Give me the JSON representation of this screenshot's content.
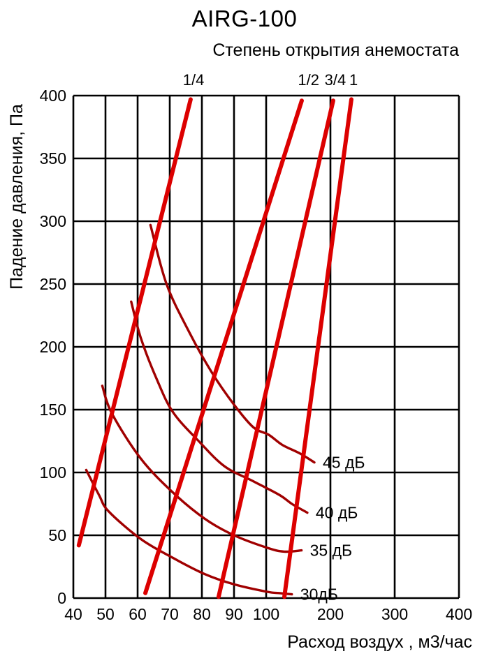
{
  "chart_data": {
    "type": "line",
    "title": "AIRG-100",
    "subtitle": "Степень открытия анемостата",
    "xlabel": "Расход воздух , м3/час",
    "ylabel": "Падение давления, Па",
    "x_axis": {
      "ticks": [
        40,
        50,
        60,
        70,
        80,
        90,
        100,
        200,
        300,
        400
      ],
      "scale": "segmented: equal spacing per tick, 40-100 step 10, 100-400 step 100",
      "range": [
        40,
        400
      ]
    },
    "y_axis": {
      "ticks": [
        0,
        50,
        100,
        150,
        200,
        250,
        300,
        350,
        400
      ],
      "range": [
        0,
        400
      ]
    },
    "grid": "on",
    "legend_position": "labels inline at curve ends",
    "colors": {
      "opening_line": "#dc0000",
      "noise_line": "#a00000",
      "grid": "#000000",
      "text": "#000000"
    },
    "opening_series": [
      {
        "label": "1/4",
        "label_at_flow": 77.4,
        "points": [
          [
            41.7,
            42
          ],
          [
            76.5,
            397
          ]
        ]
      },
      {
        "label": "1/2",
        "label_at_flow": 166.0,
        "points": [
          [
            62.4,
            4
          ],
          [
            155.4,
            396
          ]
        ]
      },
      {
        "label": "3/4",
        "label_at_flow": 207.5,
        "points": [
          [
            85.2,
            1
          ],
          [
            204.3,
            396
          ]
        ]
      },
      {
        "label": "1",
        "label_at_flow": 236.0,
        "points": [
          [
            128.3,
            1
          ],
          [
            232.6,
            397
          ]
        ]
      }
    ],
    "noise_series": [
      {
        "label": "45 дБ",
        "points": [
          [
            64,
            297
          ],
          [
            69,
            250
          ],
          [
            76,
            212
          ],
          [
            83,
            180
          ],
          [
            90,
            154
          ],
          [
            96,
            136
          ],
          [
            104,
            130
          ],
          [
            125,
            122
          ],
          [
            153,
            115
          ],
          [
            175,
            108
          ]
        ]
      },
      {
        "label": "40 дБ",
        "points": [
          [
            58,
            236
          ],
          [
            61,
            207
          ],
          [
            66,
            174
          ],
          [
            71,
            148
          ],
          [
            79,
            125
          ],
          [
            87,
            105
          ],
          [
            96,
            93
          ],
          [
            121,
            82
          ],
          [
            140,
            75
          ],
          [
            164,
            68
          ]
        ]
      },
      {
        "label": "35 дБ",
        "points": [
          [
            49,
            169
          ],
          [
            52,
            147
          ],
          [
            61,
            111
          ],
          [
            71,
            84
          ],
          [
            81,
            63
          ],
          [
            90,
            50
          ],
          [
            102,
            40
          ],
          [
            128,
            37
          ],
          [
            155,
            38
          ]
        ]
      },
      {
        "label": "30дБ",
        "points": [
          [
            44,
            102
          ],
          [
            48,
            82
          ],
          [
            51,
            69
          ],
          [
            61,
            47
          ],
          [
            71,
            32
          ],
          [
            81,
            19
          ],
          [
            90,
            11
          ],
          [
            102,
            5
          ],
          [
            120,
            4
          ],
          [
            140,
            3
          ]
        ]
      }
    ]
  }
}
